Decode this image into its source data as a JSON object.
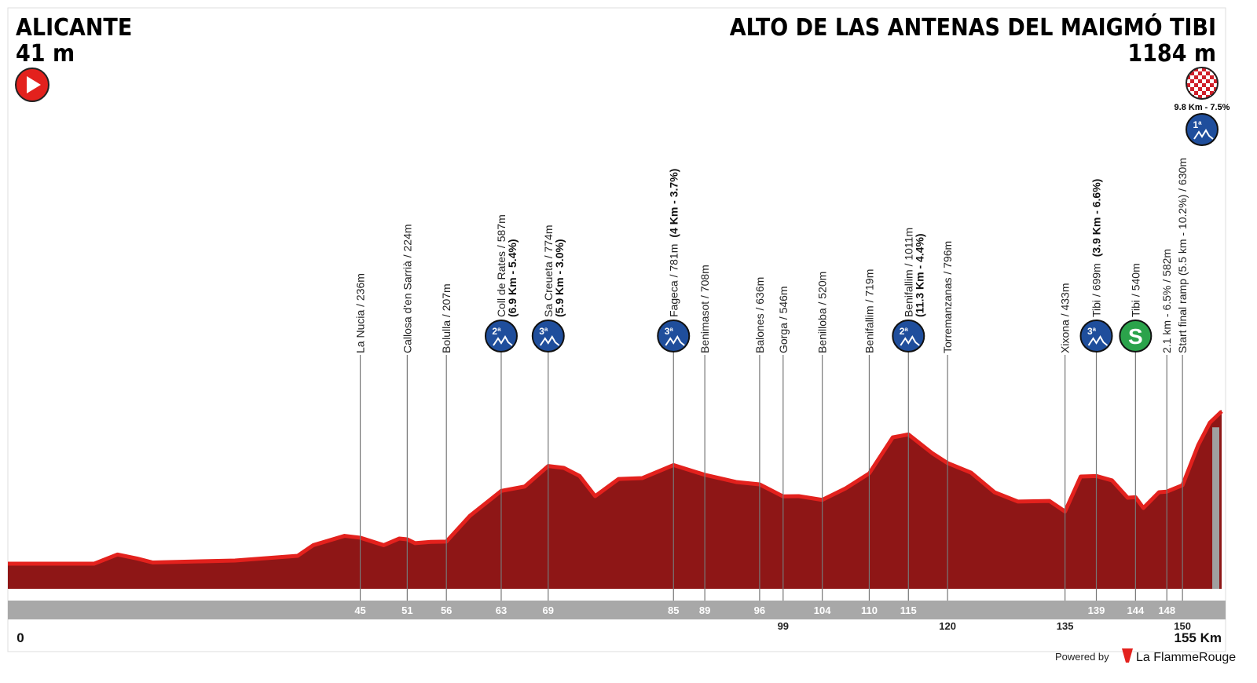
{
  "header": {
    "start_name": "ALICANTE",
    "start_altitude": "41 m",
    "finish_name": "ALTO DE LAS ANTENAS DEL MAIGMÓ TIBI",
    "finish_altitude": "1184 m",
    "finish_climb": "9.8 Km - 7.5%",
    "finish_category": "1ª"
  },
  "chart_data": {
    "type": "profile",
    "km": [
      0,
      11,
      14,
      16.5,
      18.5,
      29,
      37,
      39,
      43,
      45,
      48,
      50,
      51,
      52,
      54,
      56,
      59,
      63,
      66,
      69,
      71,
      73,
      75,
      78,
      81,
      85,
      89,
      93,
      96,
      99,
      101,
      104,
      107,
      110,
      113,
      115,
      118,
      120,
      123,
      126,
      129,
      133,
      135,
      137,
      139,
      141,
      143,
      144,
      145,
      147,
      148,
      150,
      152,
      153.5,
      155
    ],
    "elevation": [
      41,
      41,
      110,
      80,
      50,
      65,
      100,
      180,
      250,
      236,
      180,
      230,
      224,
      195,
      205,
      207,
      400,
      587,
      620,
      774,
      760,
      700,
      548,
      677,
      683,
      781,
      708,
      654,
      636,
      546,
      548,
      520,
      607,
      719,
      989,
      1011,
      872,
      796,
      724,
      577,
      507,
      512,
      433,
      695,
      699,
      666,
      536,
      540,
      459,
      577,
      582,
      630,
      930,
      1100,
      1184
    ],
    "color": "#8e1616",
    "edge_color": "#e3211d",
    "xlim": [
      0,
      155
    ],
    "xticks": [
      {
        "value": 0,
        "label": "0"
      },
      {
        "value": 155,
        "label": "155 Km"
      }
    ],
    "climb_color": "#1f4e9c",
    "sprint_color": "#2ba34b",
    "markers": [
      {
        "km": 45,
        "label": "La Nucia / 236m"
      },
      {
        "km": 51,
        "label": "Callosa d'en Sarrià / 224m"
      },
      {
        "km": 56,
        "label": "Bolulla / 207m"
      },
      {
        "km": 63,
        "label": "Coll de Rates / 587m",
        "detail": "(6.9 Km - 5.4%)",
        "badge": "climb",
        "category": "2ª"
      },
      {
        "km": 69,
        "label": "Sa Creueta / 774m",
        "detail": "(5.9 Km - 3.0%)",
        "badge": "climb",
        "category": "3ª"
      },
      {
        "km": 85,
        "label": "Fageca / 781m",
        "detail": "(4 Km - 3.7%)",
        "inline": true,
        "badge": "climb",
        "category": "3ª"
      },
      {
        "km": 89,
        "label": "Benimasot / 708m"
      },
      {
        "km": 96,
        "label": "Balones / 636m"
      },
      {
        "km": 99,
        "label": "Gorga / 546m",
        "low": true
      },
      {
        "km": 104,
        "label": "Benilloba / 520m"
      },
      {
        "km": 110,
        "label": "Benifallim / 719m"
      },
      {
        "km": 115,
        "label": "Benifallim / 1011m",
        "detail": "(11.3 Km - 4.4%)",
        "badge": "climb",
        "category": "2ª"
      },
      {
        "km": 120,
        "label": "Torremanzanas / 796m",
        "low": true
      },
      {
        "km": 135,
        "label": "Xixona / 433m",
        "low": true
      },
      {
        "km": 139,
        "label": "Tibi / 699m",
        "detail": "(3.9 Km - 6.6%)",
        "inline": true,
        "badge": "climb",
        "category": "3ª"
      },
      {
        "km": 144,
        "label": "Tibi / 540m",
        "badge": "sprint",
        "category": "S"
      },
      {
        "km": 148,
        "label": "2.1 km - 6.5% / 582m"
      },
      {
        "km": 150,
        "label": "Start final ramp (5.5 km - 10.2%) / 630m",
        "low": true
      }
    ]
  },
  "footer": {
    "powered": "Powered by",
    "brand": "La FlammeRouge"
  }
}
